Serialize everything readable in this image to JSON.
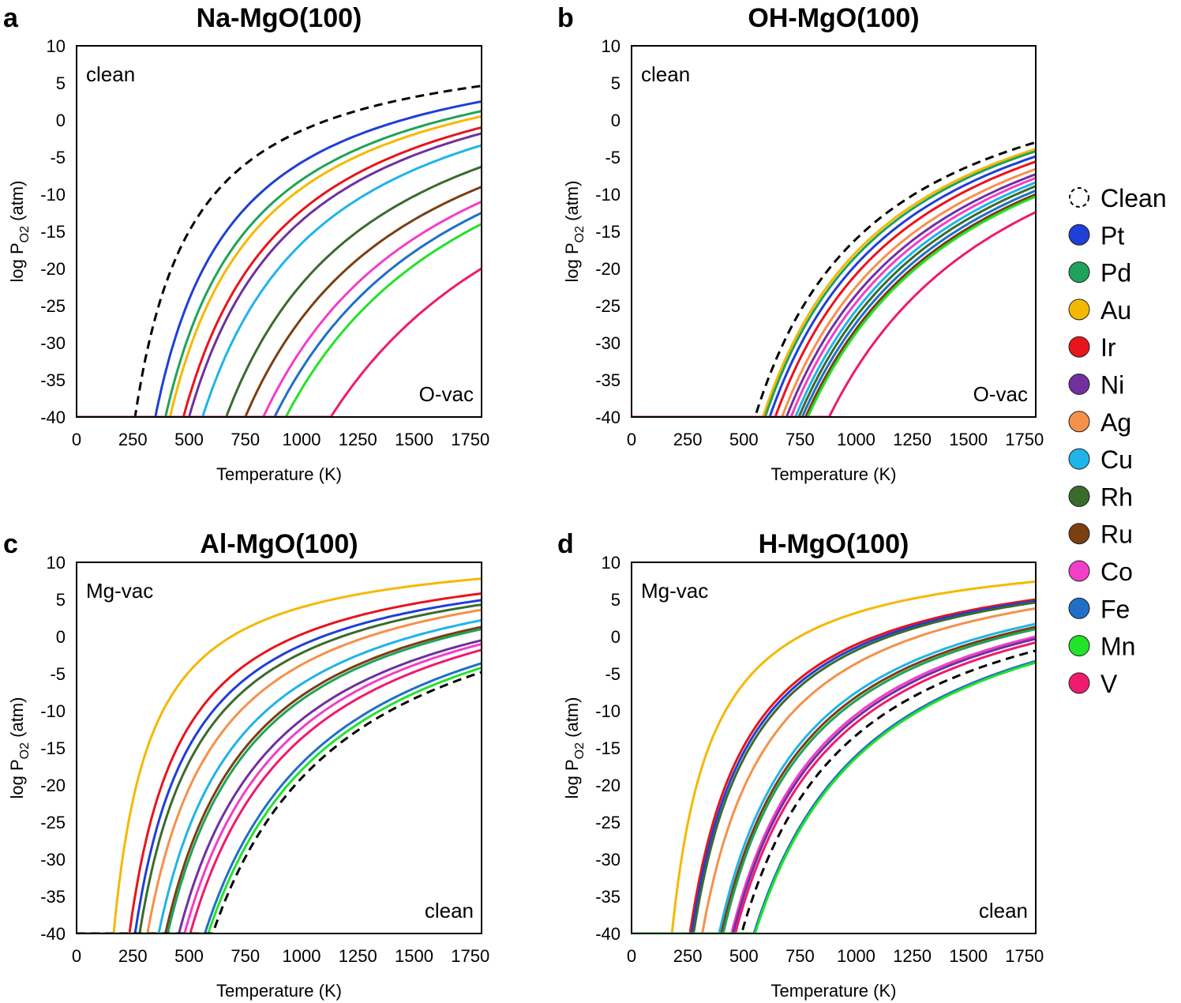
{
  "chart_data": [
    {
      "type": "line",
      "panel": "a",
      "title": "Na-MgO(100)",
      "xlabel": "Temperature (K)",
      "ylabel": "log P_O2 (atm)",
      "xlim": [
        0,
        1800
      ],
      "ylim": [
        -40,
        10
      ],
      "xticks": [
        0,
        250,
        500,
        750,
        1000,
        1250,
        1500,
        1750
      ],
      "yticks": [
        10,
        5,
        0,
        -5,
        -10,
        -15,
        -20,
        -25,
        -30,
        -35,
        -40
      ],
      "grid": false,
      "region_labels": {
        "upper": "clean",
        "lower": "O-vac"
      },
      "series": [
        {
          "name": "Clean",
          "T0": 260,
          "y_end": 4.6
        },
        {
          "name": "Pt",
          "T0": 350,
          "y_end": 2.5
        },
        {
          "name": "Pd",
          "T0": 395,
          "y_end": 1.2
        },
        {
          "name": "Au",
          "T0": 415,
          "y_end": 0.5
        },
        {
          "name": "Ir",
          "T0": 475,
          "y_end": -1.0
        },
        {
          "name": "Ni",
          "T0": 500,
          "y_end": -1.8
        },
        {
          "name": "Cu",
          "T0": 560,
          "y_end": -3.4
        },
        {
          "name": "Rh",
          "T0": 665,
          "y_end": -6.3
        },
        {
          "name": "Ru",
          "T0": 750,
          "y_end": -9.0
        },
        {
          "name": "Co",
          "T0": 830,
          "y_end": -11.0
        },
        {
          "name": "Fe",
          "T0": 880,
          "y_end": -12.5
        },
        {
          "name": "Mn",
          "T0": 930,
          "y_end": -14.0
        },
        {
          "name": "V",
          "T0": 1130,
          "y_end": -20.0
        }
      ]
    },
    {
      "type": "line",
      "panel": "b",
      "title": "OH-MgO(100)",
      "xlabel": "Temperature (K)",
      "ylabel": "log P_O2 (atm)",
      "xlim": [
        0,
        1800
      ],
      "ylim": [
        -40,
        10
      ],
      "xticks": [
        0,
        250,
        500,
        750,
        1000,
        1250,
        1500,
        1750
      ],
      "yticks": [
        10,
        5,
        0,
        -5,
        -10,
        -15,
        -20,
        -25,
        -30,
        -35,
        -40
      ],
      "grid": false,
      "region_labels": {
        "upper": "clean",
        "lower": "O-vac"
      },
      "series": [
        {
          "name": "Clean",
          "T0": 550,
          "y_end": -3.0
        },
        {
          "name": "Au",
          "T0": 585,
          "y_end": -3.9
        },
        {
          "name": "Pd",
          "T0": 595,
          "y_end": -4.2
        },
        {
          "name": "Pt",
          "T0": 615,
          "y_end": -4.9
        },
        {
          "name": "Ir",
          "T0": 640,
          "y_end": -5.6
        },
        {
          "name": "Ag",
          "T0": 670,
          "y_end": -6.6
        },
        {
          "name": "Ni",
          "T0": 690,
          "y_end": -7.3
        },
        {
          "name": "Co",
          "T0": 710,
          "y_end": -7.8
        },
        {
          "name": "Cu",
          "T0": 730,
          "y_end": -8.4
        },
        {
          "name": "Rh",
          "T0": 745,
          "y_end": -8.9
        },
        {
          "name": "Fe",
          "T0": 760,
          "y_end": -9.5
        },
        {
          "name": "Ru",
          "T0": 775,
          "y_end": -10.0
        },
        {
          "name": "Mn",
          "T0": 785,
          "y_end": -10.3
        },
        {
          "name": "V",
          "T0": 880,
          "y_end": -12.4
        }
      ]
    },
    {
      "type": "line",
      "panel": "c",
      "title": "Al-MgO(100)",
      "xlabel": "Temperature (K)",
      "ylabel": "log P_O2 (atm)",
      "xlim": [
        0,
        1800
      ],
      "ylim": [
        -40,
        10
      ],
      "xticks": [
        0,
        250,
        500,
        750,
        1000,
        1250,
        1500,
        1750
      ],
      "yticks": [
        10,
        5,
        0,
        -5,
        -10,
        -15,
        -20,
        -25,
        -30,
        -35,
        -40
      ],
      "grid": false,
      "region_labels": {
        "upper": "Mg-vac",
        "lower": "clean"
      },
      "series": [
        {
          "name": "Au",
          "T0": 165,
          "y_end": 7.8
        },
        {
          "name": "Ir",
          "T0": 235,
          "y_end": 5.8
        },
        {
          "name": "Pt",
          "T0": 260,
          "y_end": 4.9
        },
        {
          "name": "Rh",
          "T0": 280,
          "y_end": 4.3
        },
        {
          "name": "Ag",
          "T0": 315,
          "y_end": 3.6
        },
        {
          "name": "Cu",
          "T0": 365,
          "y_end": 2.2
        },
        {
          "name": "Ru",
          "T0": 395,
          "y_end": 1.3
        },
        {
          "name": "Pd",
          "T0": 405,
          "y_end": 1.0
        },
        {
          "name": "Ni",
          "T0": 455,
          "y_end": -0.5
        },
        {
          "name": "Co",
          "T0": 480,
          "y_end": -1.0
        },
        {
          "name": "V",
          "T0": 505,
          "y_end": -1.8
        },
        {
          "name": "Fe",
          "T0": 570,
          "y_end": -3.6
        },
        {
          "name": "Mn",
          "T0": 585,
          "y_end": -4.2
        },
        {
          "name": "Clean",
          "T0": 605,
          "y_end": -4.8
        }
      ]
    },
    {
      "type": "line",
      "panel": "d",
      "title": "H-MgO(100)",
      "xlabel": "Temperature (K)",
      "ylabel": "log P_O2 (atm)",
      "xlim": [
        0,
        1800
      ],
      "ylim": [
        -40,
        10
      ],
      "xticks": [
        0,
        250,
        500,
        750,
        1000,
        1250,
        1500,
        1750
      ],
      "yticks": [
        10,
        5,
        0,
        -5,
        -10,
        -15,
        -20,
        -25,
        -30,
        -35,
        -40
      ],
      "grid": false,
      "region_labels": {
        "upper": "Mg-vac",
        "lower": "clean"
      },
      "series": [
        {
          "name": "Au",
          "T0": 180,
          "y_end": 7.4
        },
        {
          "name": "Ir",
          "T0": 260,
          "y_end": 5.0
        },
        {
          "name": "Pt",
          "T0": 268,
          "y_end": 4.8
        },
        {
          "name": "Rh",
          "T0": 276,
          "y_end": 4.6
        },
        {
          "name": "Ag",
          "T0": 315,
          "y_end": 3.8
        },
        {
          "name": "Cu",
          "T0": 390,
          "y_end": 1.7
        },
        {
          "name": "Ru",
          "T0": 400,
          "y_end": 1.3
        },
        {
          "name": "Pd",
          "T0": 408,
          "y_end": 1.0
        },
        {
          "name": "Co",
          "T0": 445,
          "y_end": 0.0
        },
        {
          "name": "Ni",
          "T0": 452,
          "y_end": -0.3
        },
        {
          "name": "V",
          "T0": 462,
          "y_end": -0.8
        },
        {
          "name": "Clean",
          "T0": 490,
          "y_end": -1.9
        },
        {
          "name": "Fe",
          "T0": 545,
          "y_end": -3.3
        },
        {
          "name": "Mn",
          "T0": 550,
          "y_end": -3.5
        }
      ]
    }
  ],
  "legend": {
    "position": "right",
    "entries": [
      {
        "name": "Clean",
        "color": "#000000",
        "dashed": true
      },
      {
        "name": "Pt",
        "color": "#1f3fd6"
      },
      {
        "name": "Pd",
        "color": "#1fa35a"
      },
      {
        "name": "Au",
        "color": "#f5b800"
      },
      {
        "name": "Ir",
        "color": "#e8141c"
      },
      {
        "name": "Ni",
        "color": "#7030a0"
      },
      {
        "name": "Ag",
        "color": "#f4914b"
      },
      {
        "name": "Cu",
        "color": "#1fb4e8"
      },
      {
        "name": "Rh",
        "color": "#3a6b2c"
      },
      {
        "name": "Ru",
        "color": "#7b3f12"
      },
      {
        "name": "Co",
        "color": "#f23ec8"
      },
      {
        "name": "Fe",
        "color": "#1f6fc8"
      },
      {
        "name": "Mn",
        "color": "#22e22a"
      },
      {
        "name": "V",
        "color": "#ee1b6e"
      }
    ]
  }
}
